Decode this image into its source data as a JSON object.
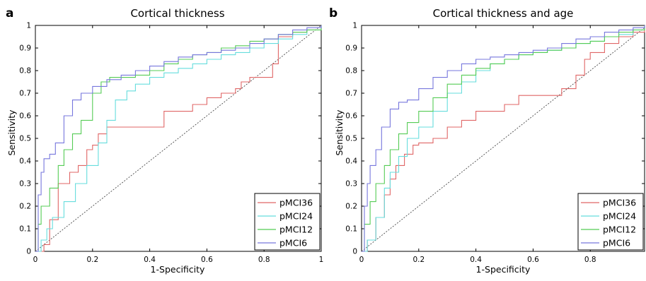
{
  "chart_data": [
    {
      "type": "line",
      "panel_letter": "a",
      "title": "Cortical thickness",
      "xlabel": "1-Specificity",
      "ylabel": "Sensitivity",
      "xlim": [
        0,
        1
      ],
      "ylim": [
        0,
        1
      ],
      "xticks": [
        "0",
        "0.2",
        "0.4",
        "0.6",
        "0.8",
        "1"
      ],
      "yticks": [
        "0",
        "0.1",
        "0.2",
        "0.3",
        "0.4",
        "0.5",
        "0.6",
        "0.7",
        "0.8",
        "0.9",
        "1"
      ],
      "grid": false,
      "legend_position": "bottom-right",
      "reference_line": "diagonal",
      "series": [
        {
          "name": "pMCI36",
          "color": "#e06666",
          "x": [
            0,
            0.03,
            0.03,
            0.05,
            0.08,
            0.12,
            0.15,
            0.18,
            0.2,
            0.22,
            0.25,
            0.3,
            0.45,
            0.45,
            0.5,
            0.55,
            0.6,
            0.65,
            0.7,
            0.72,
            0.75,
            0.8,
            0.83,
            0.85,
            0.85,
            0.9,
            0.95,
            1
          ],
          "y": [
            0,
            0,
            0.03,
            0.14,
            0.3,
            0.35,
            0.38,
            0.45,
            0.47,
            0.52,
            0.55,
            0.55,
            0.55,
            0.62,
            0.62,
            0.65,
            0.68,
            0.7,
            0.72,
            0.75,
            0.77,
            0.77,
            0.83,
            0.9,
            0.95,
            0.97,
            0.98,
            1
          ]
        },
        {
          "name": "pMCI24",
          "color": "#66dddd",
          "x": [
            0,
            0.02,
            0.04,
            0.06,
            0.1,
            0.14,
            0.18,
            0.22,
            0.25,
            0.28,
            0.32,
            0.35,
            0.4,
            0.45,
            0.5,
            0.55,
            0.6,
            0.65,
            0.7,
            0.75,
            0.8,
            0.85,
            0.9,
            0.95,
            1
          ],
          "y": [
            0,
            0.05,
            0.1,
            0.15,
            0.22,
            0.3,
            0.38,
            0.48,
            0.58,
            0.67,
            0.71,
            0.74,
            0.77,
            0.79,
            0.81,
            0.83,
            0.85,
            0.87,
            0.88,
            0.9,
            0.92,
            0.94,
            0.96,
            0.98,
            1
          ]
        },
        {
          "name": "pMCI12",
          "color": "#55cc55",
          "x": [
            0,
            0.01,
            0.02,
            0.05,
            0.08,
            0.1,
            0.13,
            0.16,
            0.2,
            0.23,
            0.26,
            0.3,
            0.35,
            0.4,
            0.45,
            0.5,
            0.55,
            0.6,
            0.65,
            0.7,
            0.75,
            0.8,
            0.85,
            0.9,
            0.95,
            1
          ],
          "y": [
            0,
            0.12,
            0.2,
            0.28,
            0.38,
            0.45,
            0.52,
            0.58,
            0.7,
            0.75,
            0.77,
            0.77,
            0.78,
            0.8,
            0.83,
            0.85,
            0.87,
            0.88,
            0.9,
            0.91,
            0.93,
            0.94,
            0.96,
            0.97,
            0.98,
            1
          ]
        },
        {
          "name": "pMCI6",
          "color": "#7777dd",
          "x": [
            0,
            0.01,
            0.02,
            0.03,
            0.05,
            0.07,
            0.1,
            0.13,
            0.16,
            0.2,
            0.25,
            0.3,
            0.35,
            0.4,
            0.45,
            0.5,
            0.55,
            0.6,
            0.65,
            0.7,
            0.75,
            0.8,
            0.85,
            0.9,
            0.95,
            1
          ],
          "y": [
            0,
            0.25,
            0.35,
            0.41,
            0.43,
            0.48,
            0.6,
            0.67,
            0.7,
            0.73,
            0.76,
            0.78,
            0.8,
            0.82,
            0.84,
            0.86,
            0.87,
            0.88,
            0.89,
            0.9,
            0.92,
            0.94,
            0.96,
            0.98,
            0.99,
            1
          ]
        }
      ]
    },
    {
      "type": "line",
      "panel_letter": "b",
      "title": "Cortical thickness and age",
      "xlabel": "1-Specificity",
      "ylabel": "Sensitivity",
      "xlim": [
        0,
        1
      ],
      "ylim": [
        0,
        1
      ],
      "xticks": [
        "0",
        "0.2",
        "0.4",
        "0.6",
        "0.8"
      ],
      "yticks": [
        "0",
        "0.1",
        "0.2",
        "0.3",
        "0.4",
        "0.5",
        "0.6",
        "0.7",
        "0.8",
        "0.9",
        "1"
      ],
      "grid": false,
      "legend_position": "bottom-right",
      "reference_line": "diagonal",
      "series": [
        {
          "name": "pMCI36",
          "color": "#e06666",
          "x": [
            0,
            0.02,
            0.05,
            0.08,
            0.1,
            0.12,
            0.15,
            0.18,
            0.2,
            0.25,
            0.3,
            0.35,
            0.4,
            0.45,
            0.5,
            0.55,
            0.6,
            0.65,
            0.7,
            0.75,
            0.78,
            0.8,
            0.85,
            0.9,
            0.95,
            1
          ],
          "y": [
            0,
            0.05,
            0.15,
            0.25,
            0.32,
            0.38,
            0.43,
            0.47,
            0.48,
            0.5,
            0.55,
            0.58,
            0.62,
            0.62,
            0.65,
            0.69,
            0.69,
            0.69,
            0.72,
            0.78,
            0.85,
            0.88,
            0.92,
            0.95,
            0.97,
            1
          ]
        },
        {
          "name": "pMCI24",
          "color": "#66dddd",
          "x": [
            0,
            0.02,
            0.05,
            0.08,
            0.1,
            0.13,
            0.16,
            0.2,
            0.25,
            0.3,
            0.35,
            0.4,
            0.45,
            0.5,
            0.55,
            0.6,
            0.65,
            0.7,
            0.75,
            0.8,
            0.85,
            0.9,
            0.95,
            1
          ],
          "y": [
            0,
            0.05,
            0.15,
            0.28,
            0.35,
            0.42,
            0.5,
            0.55,
            0.62,
            0.7,
            0.75,
            0.8,
            0.83,
            0.85,
            0.87,
            0.88,
            0.89,
            0.9,
            0.92,
            0.93,
            0.95,
            0.96,
            0.98,
            1
          ]
        },
        {
          "name": "pMCI12",
          "color": "#55cc55",
          "x": [
            0,
            0.01,
            0.03,
            0.05,
            0.08,
            0.1,
            0.13,
            0.16,
            0.2,
            0.25,
            0.3,
            0.35,
            0.4,
            0.45,
            0.5,
            0.55,
            0.6,
            0.65,
            0.7,
            0.75,
            0.8,
            0.85,
            0.9,
            0.95,
            1
          ],
          "y": [
            0,
            0.12,
            0.22,
            0.3,
            0.38,
            0.45,
            0.52,
            0.57,
            0.62,
            0.68,
            0.74,
            0.78,
            0.81,
            0.83,
            0.85,
            0.87,
            0.88,
            0.89,
            0.9,
            0.92,
            0.93,
            0.95,
            0.97,
            0.98,
            1
          ]
        },
        {
          "name": "pMCI6",
          "color": "#7777dd",
          "x": [
            0,
            0.01,
            0.02,
            0.03,
            0.05,
            0.07,
            0.1,
            0.13,
            0.16,
            0.2,
            0.25,
            0.3,
            0.35,
            0.4,
            0.45,
            0.5,
            0.55,
            0.6,
            0.65,
            0.7,
            0.75,
            0.8,
            0.85,
            0.9,
            0.95,
            1
          ],
          "y": [
            0,
            0.2,
            0.3,
            0.38,
            0.45,
            0.55,
            0.63,
            0.66,
            0.67,
            0.72,
            0.77,
            0.8,
            0.83,
            0.85,
            0.86,
            0.87,
            0.88,
            0.89,
            0.9,
            0.92,
            0.94,
            0.95,
            0.97,
            0.98,
            0.99,
            1
          ]
        }
      ]
    }
  ]
}
